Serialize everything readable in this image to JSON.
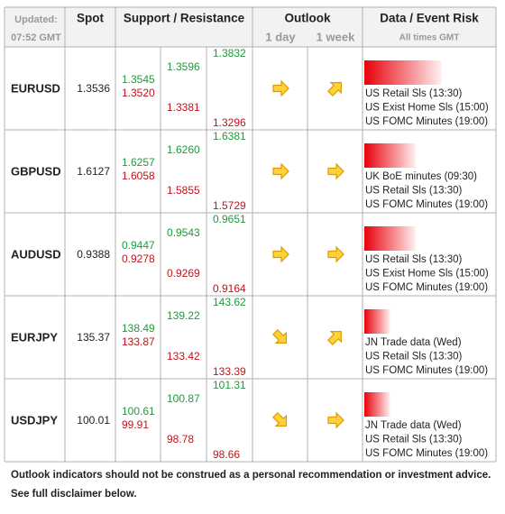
{
  "header": {
    "updated": "Updated:",
    "time": "07:52 GMT",
    "spot": "Spot",
    "support_resistance": "Support / Resistance",
    "outlook": "Outlook",
    "day": "1 day",
    "week": "1 week",
    "data_event_risk": "Data / Event Risk",
    "all_times": "All times GMT"
  },
  "rows": [
    {
      "pair": "EURUSD",
      "spot": "1.3536",
      "levels": [
        [
          "1.3545",
          "1.3520"
        ],
        [
          "1.3596",
          "1.3381"
        ],
        [
          "1.3832",
          "1.3296"
        ]
      ],
      "outlook": [
        "right",
        "up"
      ],
      "risk": 3,
      "events": [
        "US Retail Sls (13:30)",
        "US Exist Home Sls (15:00)",
        "US FOMC Minutes (19:00)"
      ]
    },
    {
      "pair": "GBPUSD",
      "spot": "1.6127",
      "levels": [
        [
          "1.6257",
          "1.6058"
        ],
        [
          "1.6260",
          "1.5855"
        ],
        [
          "1.6381",
          "1.5729"
        ]
      ],
      "outlook": [
        "right",
        "right"
      ],
      "risk": 2,
      "events": [
        "UK BoE minutes (09:30)",
        "US Retail Sls (13:30)",
        "US FOMC Minutes (19:00)"
      ]
    },
    {
      "pair": "AUDUSD",
      "spot": "0.9388",
      "levels": [
        [
          "0.9447",
          "0.9278"
        ],
        [
          "0.9543",
          "0.9269"
        ],
        [
          "0.9651",
          "0.9164"
        ]
      ],
      "outlook": [
        "right",
        "right"
      ],
      "risk": 2,
      "events": [
        "US Retail Sls (13:30)",
        "US Exist Home Sls (15:00)",
        "US FOMC Minutes (19:00)"
      ]
    },
    {
      "pair": "EURJPY",
      "spot": "135.37",
      "levels": [
        [
          "138.49",
          "133.87"
        ],
        [
          "139.22",
          "133.42"
        ],
        [
          "143.62",
          "133.39"
        ]
      ],
      "outlook": [
        "down",
        "up"
      ],
      "risk": 1,
      "events": [
        "JN Trade data (Wed)",
        "US Retail Sls (13:30)",
        "US FOMC Minutes (19:00)"
      ]
    },
    {
      "pair": "USDJPY",
      "spot": "100.01",
      "levels": [
        [
          "100.61",
          "99.91"
        ],
        [
          "100.87",
          "98.78"
        ],
        [
          "101.31",
          "98.66"
        ]
      ],
      "outlook": [
        "down",
        "right"
      ],
      "risk": 1,
      "events": [
        "JN Trade data (Wed)",
        "US Retail Sls (13:30)",
        "US FOMC Minutes (19:00)"
      ]
    }
  ],
  "footer": [
    "Outlook indicators should not be construed as a personal recommendation or investment advice.",
    "See full disclaimer below."
  ]
}
